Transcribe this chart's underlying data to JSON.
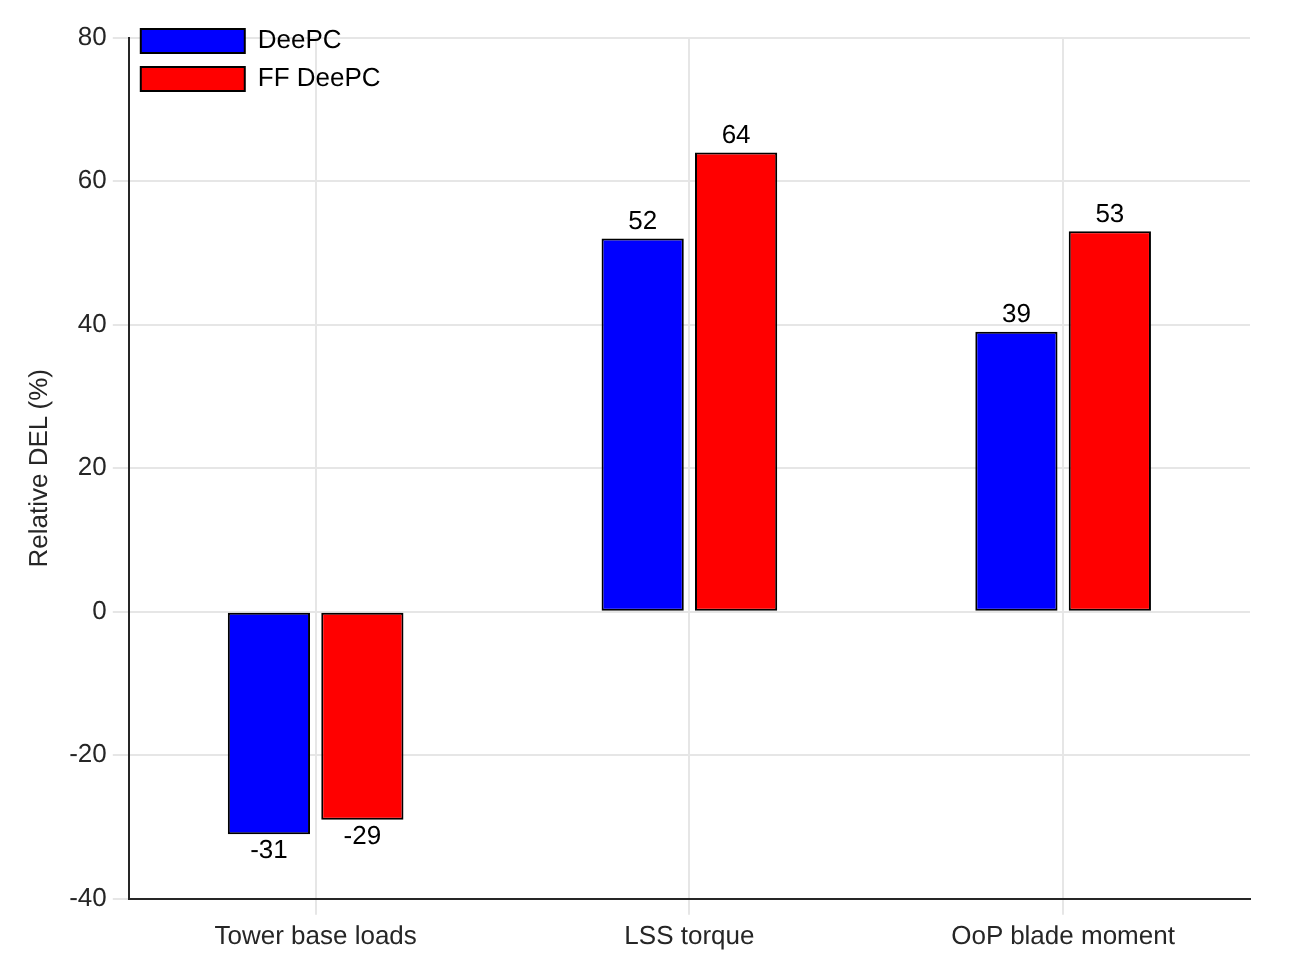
{
  "chart_data": {
    "type": "bar",
    "ylabel": "Relative DEL (%)",
    "categories": [
      "Tower base loads",
      "LSS torque",
      "OoP blade moment"
    ],
    "series": [
      {
        "name": "DeePC",
        "color": "#0000ff",
        "values": [
          -31,
          52,
          39
        ]
      },
      {
        "name": "FF DeePC",
        "color": "#ff0000",
        "values": [
          -29,
          64,
          53
        ]
      }
    ],
    "ylim": [
      -40,
      80
    ],
    "yticks": [
      -40,
      -20,
      0,
      20,
      40,
      60,
      80
    ],
    "grid": true,
    "legend": "top left",
    "data_labels": true
  }
}
